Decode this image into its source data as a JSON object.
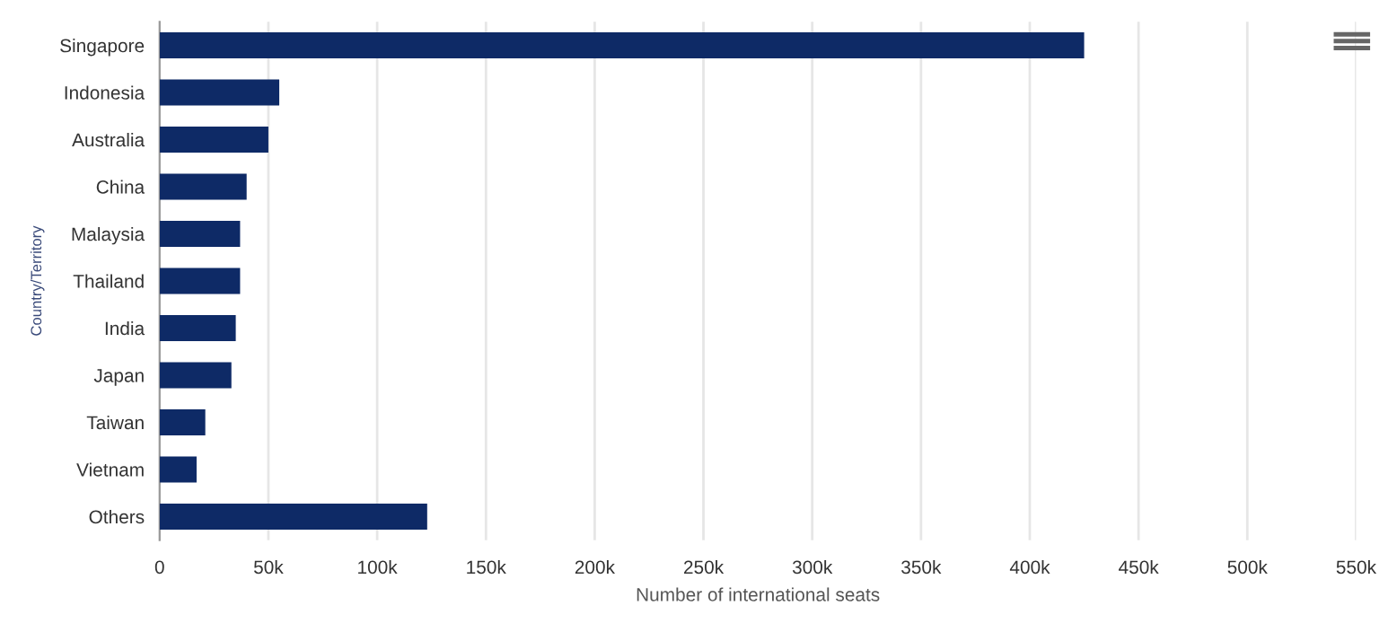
{
  "chart_data": {
    "type": "bar",
    "orientation": "horizontal",
    "xlabel": "Number of international seats",
    "ylabel": "Country/Territory",
    "categories": [
      "Singapore",
      "Indonesia",
      "Australia",
      "China",
      "Malaysia",
      "Thailand",
      "India",
      "Japan",
      "Taiwan",
      "Vietnam",
      "Others"
    ],
    "values": [
      425000,
      55000,
      50000,
      40000,
      37000,
      37000,
      35000,
      33000,
      21000,
      17000,
      123000
    ],
    "color": "#0e2a66",
    "xlim": [
      0,
      550000
    ],
    "xticks": [
      {
        "value": 0,
        "label": "0"
      },
      {
        "value": 50000,
        "label": "50k"
      },
      {
        "value": 100000,
        "label": "100k"
      },
      {
        "value": 150000,
        "label": "150k"
      },
      {
        "value": 200000,
        "label": "200k"
      },
      {
        "value": 250000,
        "label": "250k"
      },
      {
        "value": 300000,
        "label": "300k"
      },
      {
        "value": 350000,
        "label": "350k"
      },
      {
        "value": 400000,
        "label": "400k"
      },
      {
        "value": 450000,
        "label": "450k"
      },
      {
        "value": 500000,
        "label": "500k"
      },
      {
        "value": 550000,
        "label": "550k"
      }
    ],
    "grid": "x",
    "legend": false
  }
}
